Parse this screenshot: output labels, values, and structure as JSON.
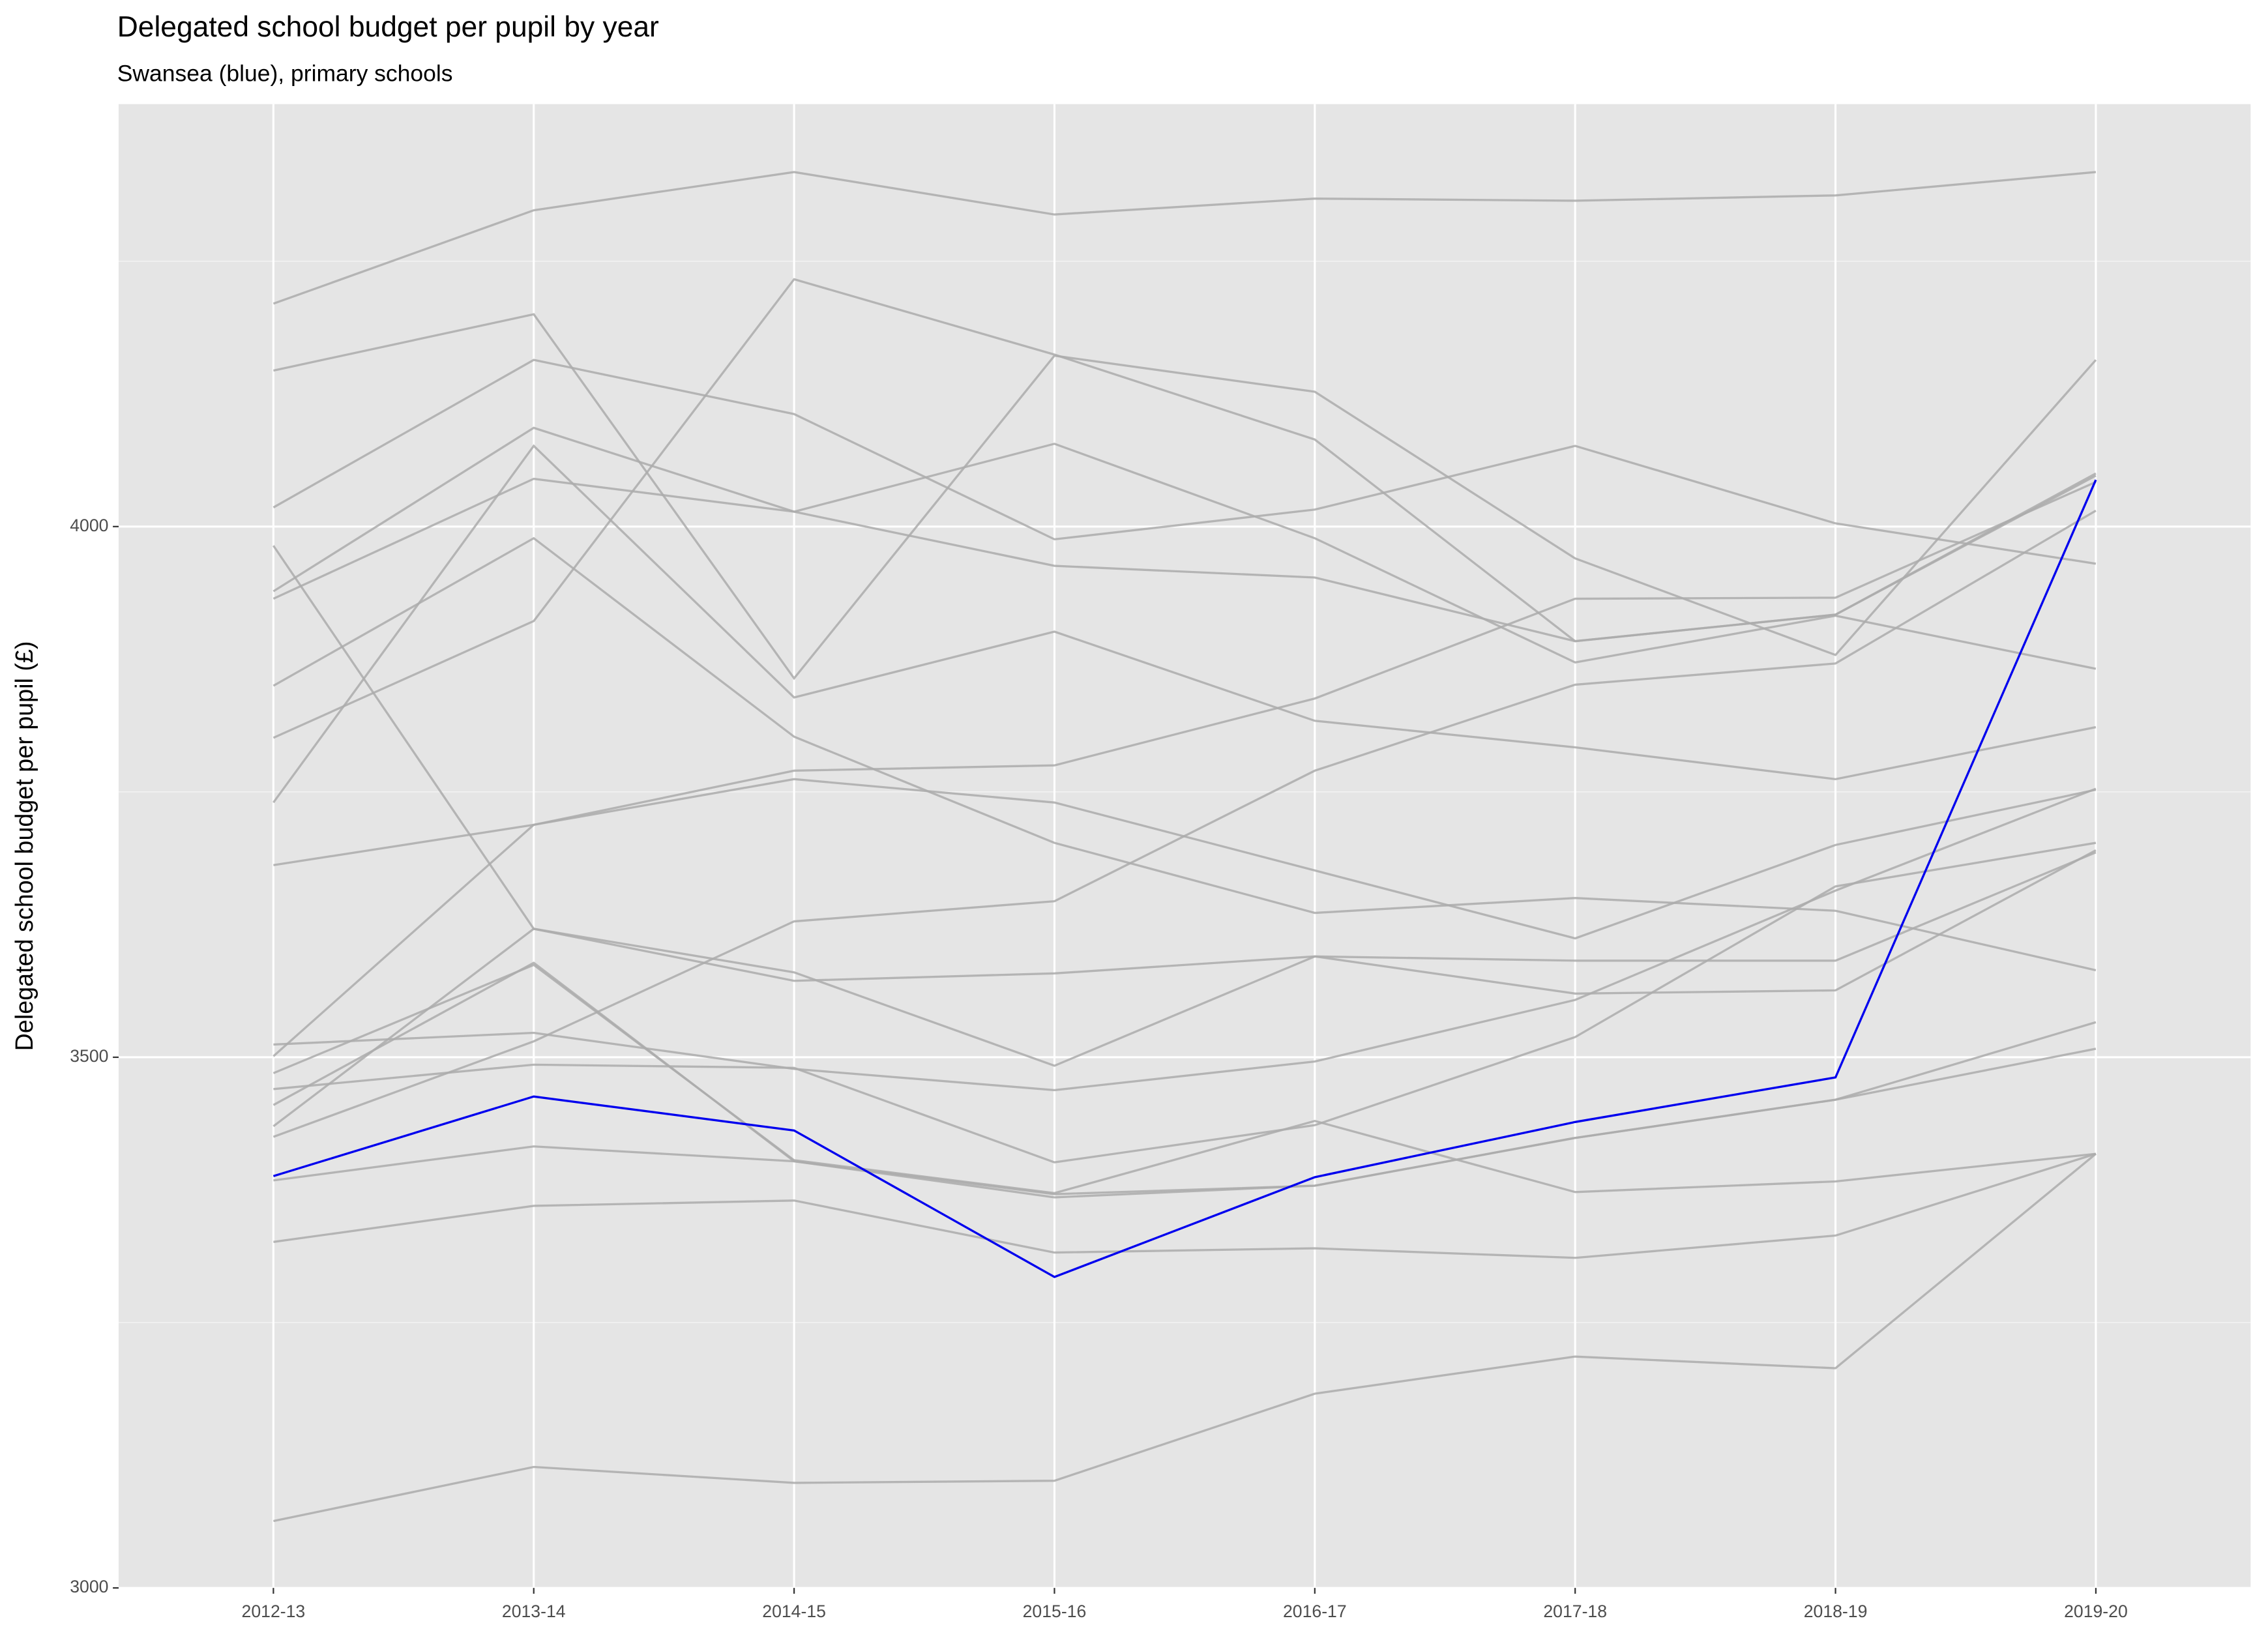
{
  "chart_data": {
    "type": "line",
    "title": "Delegated school budget per pupil by year",
    "subtitle": "Swansea (blue), primary schools",
    "y_label": "Delegated school budget per pupil (£)",
    "categories": [
      "2012-13",
      "2013-14",
      "2014-15",
      "2015-16",
      "2016-17",
      "2017-18",
      "2018-19",
      "2019-20"
    ],
    "ylim": [
      3000,
      4398
    ],
    "yticks": [
      3000,
      3500,
      4000
    ],
    "yticks_minor": [
      3250,
      3750,
      4250
    ],
    "grid": true,
    "series": [
      {
        "color": "#ababab",
        "values": [
          4210,
          4298,
          4334,
          4294,
          4309,
          4307,
          4312,
          4334
        ]
      },
      {
        "color": "#ababab",
        "values": [
          4147,
          4200,
          3857,
          4161,
          4127,
          3970,
          3879,
          4157
        ]
      },
      {
        "color": "#ababab",
        "values": [
          4018,
          4157,
          4106,
          3988,
          4016,
          4076,
          4003,
          3965
        ]
      },
      {
        "color": "#ababab",
        "values": [
          3982,
          3621,
          3580,
          3492,
          3595,
          3560,
          3563,
          3695
        ]
      },
      {
        "color": "#ababab",
        "values": [
          3939,
          4093,
          4014,
          4078,
          3989,
          3872,
          3916,
          3866
        ]
      },
      {
        "color": "#ababab",
        "values": [
          3932,
          4045,
          4014,
          3963,
          3952,
          3892,
          3917,
          4048
        ]
      },
      {
        "color": "#ababab",
        "values": [
          3850,
          3989,
          3802,
          3702,
          3636,
          3650,
          3638,
          3582
        ]
      },
      {
        "color": "#ababab",
        "values": [
          3801,
          3911,
          4233,
          4162,
          4082,
          3892,
          3917,
          4050
        ]
      },
      {
        "color": "#ababab",
        "values": [
          3740,
          4076,
          3839,
          3901,
          3817,
          3792,
          3762,
          3811
        ]
      },
      {
        "color": "#ababab",
        "values": [
          3681,
          3719,
          3762,
          3740,
          3676,
          3612,
          3700,
          3752
        ]
      },
      {
        "color": "#ababab",
        "values": [
          3512,
          3523,
          3489,
          3469,
          3496,
          3554,
          3657,
          3753
        ]
      },
      {
        "color": "#ababab",
        "values": [
          3501,
          3719,
          3770,
          3775,
          3838,
          3932,
          3933,
          4042
        ]
      },
      {
        "color": "#ababab",
        "values": [
          3485,
          3587,
          3403,
          3372,
          3440,
          3373,
          3383,
          3409
        ]
      },
      {
        "color": "#ababab",
        "values": [
          3470,
          3493,
          3490,
          3401,
          3436,
          3519,
          3661,
          3702
        ]
      },
      {
        "color": "#ababab",
        "values": [
          3455,
          3589,
          3402,
          3371,
          3379,
          3424,
          3460,
          3533
        ]
      },
      {
        "color": "#ababab",
        "values": [
          3435,
          3621,
          3572,
          3579,
          3595,
          3591,
          3591,
          3693
        ]
      },
      {
        "color": "#ababab",
        "values": [
          3425,
          3515,
          3628,
          3647,
          3770,
          3851,
          3871,
          4015
        ]
      },
      {
        "color": "#ababab",
        "values": [
          3384,
          3416,
          3402,
          3368,
          3379,
          3424,
          3460,
          3508
        ]
      },
      {
        "color": "#ababab",
        "values": [
          3326,
          3360,
          3365,
          3316,
          3320,
          3311,
          3332,
          3409
        ]
      },
      {
        "color": "#ababab",
        "values": [
          3063,
          3114,
          3099,
          3101,
          3183,
          3218,
          3207,
          3409
        ]
      },
      {
        "color": "#0000ee",
        "values": [
          3388,
          3463,
          3431,
          3293,
          3387,
          3439,
          3481,
          4044
        ]
      }
    ]
  }
}
